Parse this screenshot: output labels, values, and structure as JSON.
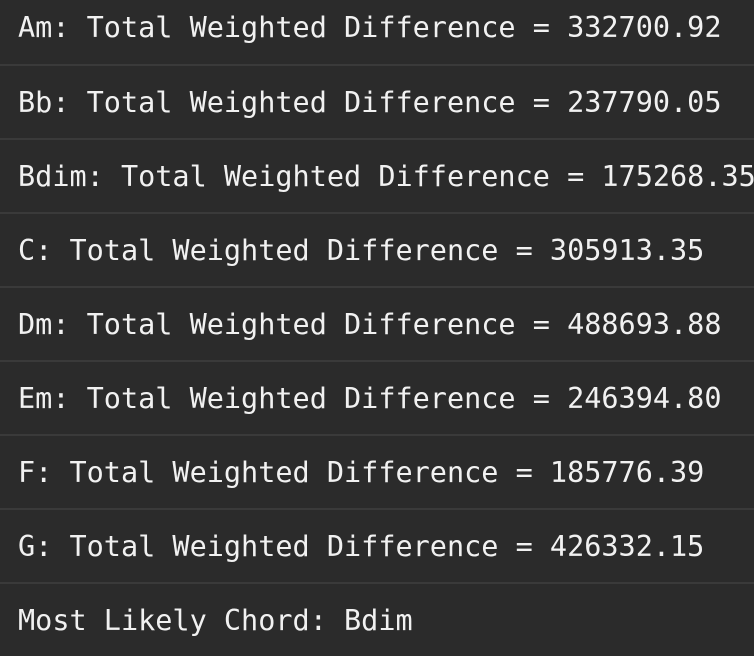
{
  "output": {
    "lines": [
      "Am: Total Weighted Difference = 332700.92",
      "Bb: Total Weighted Difference = 237790.05",
      "Bdim: Total Weighted Difference = 175268.35",
      "C: Total Weighted Difference = 305913.35",
      "Dm: Total Weighted Difference = 488693.88",
      "Em: Total Weighted Difference = 246394.80",
      "F: Total Weighted Difference = 185776.39",
      "G: Total Weighted Difference = 426332.15"
    ],
    "result": "Most Likely Chord: Bdim"
  }
}
